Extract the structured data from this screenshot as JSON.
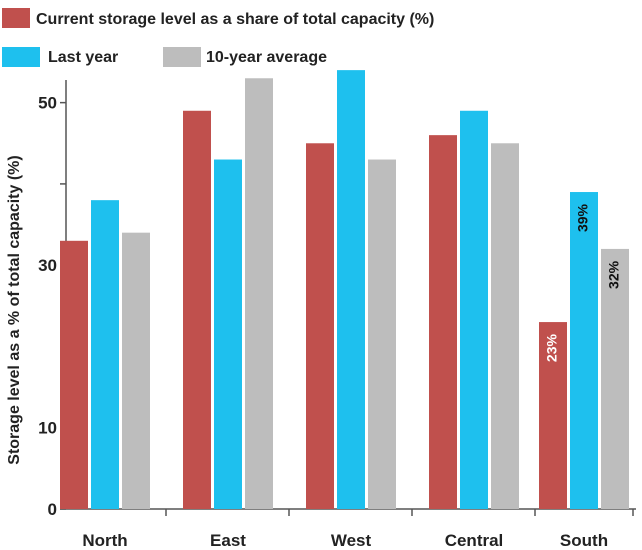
{
  "chart_data": {
    "type": "bar",
    "title": "",
    "xlabel": "",
    "ylabel": "Storage level as a % of total capacity (%)",
    "ylim": [
      0,
      55
    ],
    "yticks": [
      0,
      10,
      30,
      50
    ],
    "grid": false,
    "legend_position": "top-left",
    "categories": [
      "North",
      "East",
      "West",
      "Central",
      "South"
    ],
    "series": [
      {
        "name": "Current storage level as a share of total capacity (%)",
        "color": "#c0504d",
        "values": [
          33,
          49,
          45,
          46,
          23
        ],
        "data_labels": [
          "",
          "",
          "",
          "",
          "23%"
        ]
      },
      {
        "name": "Last year",
        "color": "#1ec0ee",
        "values": [
          38,
          43,
          54,
          49,
          39
        ],
        "data_labels": [
          "",
          "",
          "",
          "",
          "39%"
        ]
      },
      {
        "name": "10-year average",
        "color": "#bdbdbd",
        "values": [
          34,
          53,
          43,
          45,
          32
        ],
        "data_labels": [
          "",
          "",
          "",
          "",
          "32%"
        ]
      }
    ]
  }
}
